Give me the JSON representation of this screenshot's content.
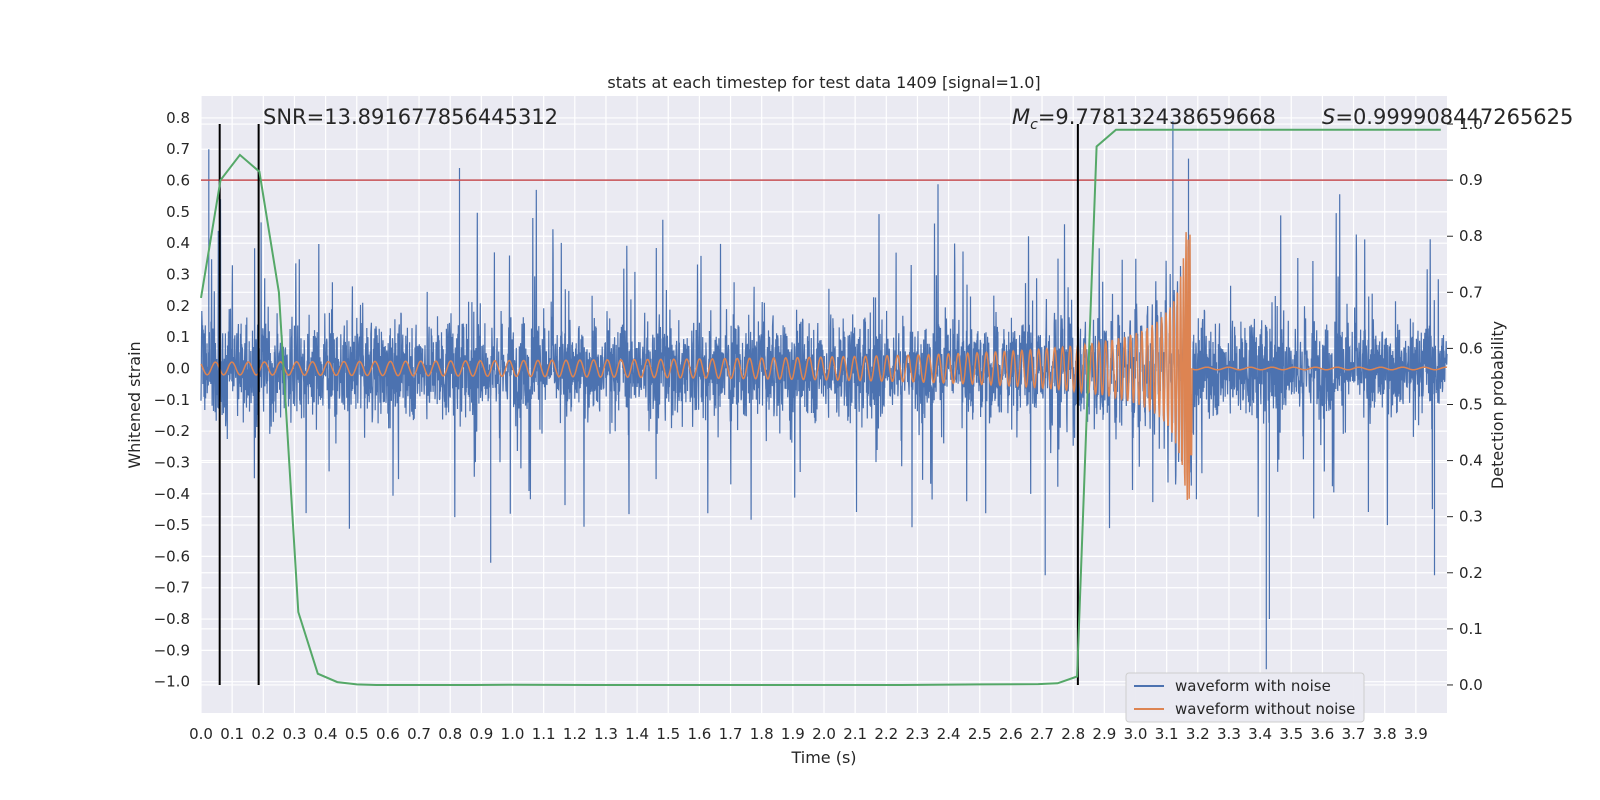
{
  "chart_data": {
    "type": "line",
    "title": "stats at each timestep for test data 1409 [signal=1.0]",
    "xlabel": "Time (s)",
    "ylabel": "Whitened strain",
    "ylabel_right": "Detection probability",
    "xlim": [
      0.0,
      4.0
    ],
    "ylim": [
      -1.1,
      0.87
    ],
    "ylim_right": [
      -0.05,
      1.05
    ],
    "x_ticks": [
      0.0,
      0.1,
      0.2,
      0.3,
      0.4,
      0.5,
      0.6,
      0.7,
      0.8,
      0.9,
      1.0,
      1.1,
      1.2,
      1.3,
      1.4,
      1.5,
      1.6,
      1.7,
      1.8,
      1.9,
      2.0,
      2.1,
      2.2,
      2.3,
      2.4,
      2.5,
      2.6,
      2.7,
      2.8,
      2.9,
      3.0,
      3.1,
      3.2,
      3.3,
      3.4,
      3.5,
      3.6,
      3.7,
      3.8,
      3.9
    ],
    "x_tick_labels": [
      "0.0",
      "0.1",
      "0.2",
      "0.3",
      "0.4",
      "0.5",
      "0.6",
      "0.7",
      "0.8",
      "0.9",
      "1.0",
      "1.1",
      "1.2",
      "1.3",
      "1.4",
      "1.5",
      "1.6",
      "1.7",
      "1.8",
      "1.9",
      "2.0",
      "2.1",
      "2.2",
      "2.3",
      "2.4",
      "2.5",
      "2.6",
      "2.7",
      "2.8",
      "2.9",
      "3.0",
      "3.1",
      "3.2",
      "3.3",
      "3.4",
      "3.5",
      "3.6",
      "3.7",
      "3.8",
      "3.9"
    ],
    "y_ticks": [
      0.8,
      0.7,
      0.6,
      0.5,
      0.4,
      0.3,
      0.2,
      0.1,
      0.0,
      -0.1,
      -0.2,
      -0.3,
      -0.4,
      -0.5,
      -0.6,
      -0.7,
      -0.8,
      -0.9,
      -1.0
    ],
    "y_tick_labels": [
      "0.8",
      "0.7",
      "0.6",
      "0.5",
      "0.4",
      "0.3",
      "0.2",
      "0.1",
      "0.0",
      "−0.1",
      "−0.2",
      "−0.3",
      "−0.4",
      "−0.5",
      "−0.6",
      "−0.7",
      "−0.8",
      "−0.9",
      "−1.0"
    ],
    "y_right_ticks": [
      1.0,
      0.9,
      0.8,
      0.7,
      0.6,
      0.5,
      0.4,
      0.3,
      0.2,
      0.1,
      0.0
    ],
    "y_right_tick_labels": [
      "1.0",
      "0.9",
      "0.8",
      "0.7",
      "0.6",
      "0.5",
      "0.4",
      "0.3",
      "0.2",
      "0.1",
      "0.0"
    ],
    "grid": true,
    "series": [
      {
        "name": "waveform with noise",
        "color": "#4c72b0",
        "description": "whitened strain containing noise, dense trace spanning about -1.0 to 0.8",
        "t_range": [
          0.0,
          4.0
        ],
        "noise_envelope": 0.3,
        "min_spike": -0.98,
        "max_spike": 0.79
      },
      {
        "name": "waveform without noise",
        "color": "#dd8452",
        "description": "chirp signal, amplitude growing to merger near 3.18 s then flat",
        "t_range": [
          0.0,
          4.0
        ],
        "merger_time": 3.18,
        "start_amplitude": 0.02,
        "peak_amplitude": 0.45
      },
      {
        "name": "detection probability",
        "color": "#55a868",
        "axis": "right",
        "x": [
          0.0,
          0.0625,
          0.125,
          0.1875,
          0.25,
          0.3125,
          0.375,
          0.4375,
          0.5,
          0.5625,
          0.625,
          0.75,
          0.875,
          1.0,
          1.25,
          1.5,
          1.75,
          2.0,
          2.25,
          2.5,
          2.6875,
          2.75,
          2.8125,
          2.875,
          2.9375,
          3.0,
          3.25,
          3.5,
          3.75,
          3.98
        ],
        "values": [
          0.69,
          0.9,
          0.945,
          0.915,
          0.7,
          0.13,
          0.02,
          0.005,
          0.001,
          0.0,
          0.0,
          0.0,
          0.0,
          0.0005,
          0.0,
          0.0,
          0.0,
          0.0,
          0.0,
          0.001,
          0.0015,
          0.003,
          0.015,
          0.96,
          0.99,
          0.99,
          0.99,
          0.99,
          0.99,
          0.99
        ]
      }
    ],
    "threshold": {
      "value": 0.9,
      "axis": "right",
      "color": "#c44e52"
    },
    "vertical_markers": [
      0.06,
      0.185,
      2.815
    ],
    "annotations": {
      "snr": "SNR=13.891677856445312",
      "mc_symbol": "M",
      "mc_subscript": "c",
      "mc_value": "=9.778132438659668",
      "s_symbol": "S",
      "s_value": "=0.999908447265625"
    },
    "legend": {
      "position": "lower-right",
      "entries": [
        {
          "label": "waveform with noise",
          "color": "#4c72b0"
        },
        {
          "label": "waveform without noise",
          "color": "#dd8452"
        }
      ]
    }
  }
}
